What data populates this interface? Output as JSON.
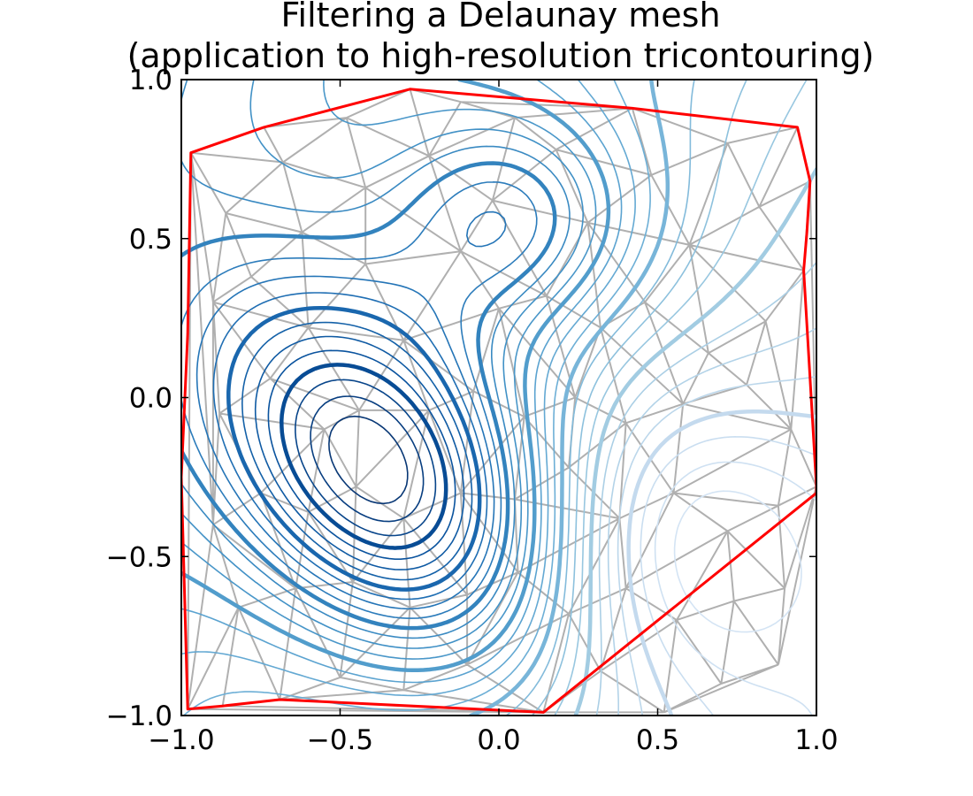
{
  "chart_data": {
    "type": "contour",
    "title": "Filtering a Delaunay mesh",
    "subtitle": "(application to high-resolution tricontouring)",
    "xlabel": "",
    "ylabel": "",
    "xlim": [
      -1.0,
      1.0
    ],
    "ylim": [
      -1.0,
      1.0
    ],
    "x_ticks": [
      -1.0,
      -0.5,
      0.0,
      0.5,
      1.0
    ],
    "y_ticks": [
      -1.0,
      -0.5,
      0.0,
      0.5,
      1.0
    ],
    "x_tick_labels": [
      "−1.0",
      "−0.5",
      "0.0",
      "0.5",
      "1.0"
    ],
    "y_tick_labels": [
      "−1.0",
      "−0.5",
      "0.0",
      "0.5",
      "1.0"
    ],
    "grid": false,
    "colormap": "Blues",
    "colors": {
      "mesh": "#b0b0b0",
      "masked_edges": "#ff0000",
      "contour_dark": "#08306b",
      "contour_light": "#deebf7"
    },
    "masked_boundary": [
      [
        -0.97,
        0.77
      ],
      [
        -0.74,
        0.85
      ],
      [
        -0.28,
        0.97
      ],
      [
        0.42,
        0.91
      ],
      [
        0.94,
        0.85
      ],
      [
        0.98,
        0.68
      ],
      [
        0.97,
        0.52
      ],
      [
        0.96,
        0.4
      ],
      [
        1.0,
        -0.28
      ],
      [
        1.0,
        -0.3
      ],
      [
        0.14,
        -0.99
      ],
      [
        -0.69,
        -0.95
      ],
      [
        -0.87,
        -0.97
      ],
      [
        -0.98,
        -0.98
      ],
      [
        -1.0,
        -0.25
      ],
      [
        -0.98,
        0.2
      ]
    ],
    "mesh_points": [
      [
        -0.97,
        0.77
      ],
      [
        -0.86,
        0.58
      ],
      [
        -0.74,
        0.85
      ],
      [
        -0.68,
        0.74
      ],
      [
        -0.62,
        0.52
      ],
      [
        -0.48,
        0.88
      ],
      [
        -0.42,
        0.66
      ],
      [
        -0.28,
        0.97
      ],
      [
        -0.22,
        0.76
      ],
      [
        -0.12,
        0.93
      ],
      [
        -0.02,
        0.62
      ],
      [
        0.05,
        0.88
      ],
      [
        0.18,
        0.78
      ],
      [
        0.28,
        0.55
      ],
      [
        0.42,
        0.91
      ],
      [
        0.48,
        0.7
      ],
      [
        0.6,
        0.48
      ],
      [
        0.72,
        0.8
      ],
      [
        0.82,
        0.6
      ],
      [
        0.94,
        0.85
      ],
      [
        0.98,
        0.68
      ],
      [
        -0.9,
        0.3
      ],
      [
        -0.78,
        0.38
      ],
      [
        -0.6,
        0.22
      ],
      [
        -0.42,
        0.42
      ],
      [
        -0.3,
        0.18
      ],
      [
        -0.12,
        0.46
      ],
      [
        0.0,
        0.28
      ],
      [
        0.15,
        0.32
      ],
      [
        0.32,
        0.22
      ],
      [
        0.46,
        0.3
      ],
      [
        0.66,
        0.14
      ],
      [
        0.84,
        0.24
      ],
      [
        0.96,
        0.4
      ],
      [
        -0.88,
        -0.05
      ],
      [
        -0.72,
        0.06
      ],
      [
        -0.55,
        -0.1
      ],
      [
        -0.44,
        -0.04
      ],
      [
        -0.22,
        -0.04
      ],
      [
        -0.08,
        0.02
      ],
      [
        0.08,
        -0.06
      ],
      [
        0.24,
        0.0
      ],
      [
        0.4,
        -0.08
      ],
      [
        0.58,
        -0.02
      ],
      [
        0.78,
        0.04
      ],
      [
        0.92,
        -0.1
      ],
      [
        1.0,
        -0.28
      ],
      [
        -0.9,
        -0.4
      ],
      [
        -0.75,
        -0.3
      ],
      [
        -0.6,
        -0.36
      ],
      [
        -0.45,
        -0.28
      ],
      [
        -0.3,
        -0.38
      ],
      [
        -0.12,
        -0.3
      ],
      [
        0.05,
        -0.32
      ],
      [
        0.22,
        -0.22
      ],
      [
        0.38,
        -0.38
      ],
      [
        0.55,
        -0.3
      ],
      [
        0.72,
        -0.42
      ],
      [
        0.88,
        -0.34
      ],
      [
        -0.82,
        -0.66
      ],
      [
        -0.64,
        -0.6
      ],
      [
        -0.46,
        -0.58
      ],
      [
        -0.28,
        -0.66
      ],
      [
        -0.1,
        -0.62
      ],
      [
        0.06,
        -0.55
      ],
      [
        0.22,
        -0.68
      ],
      [
        0.4,
        -0.6
      ],
      [
        0.56,
        -0.7
      ],
      [
        0.74,
        -0.64
      ],
      [
        0.9,
        -0.6
      ],
      [
        -0.87,
        -0.97
      ],
      [
        -0.69,
        -0.95
      ],
      [
        -0.5,
        -0.88
      ],
      [
        -0.3,
        -0.92
      ],
      [
        -0.1,
        -0.84
      ],
      [
        0.14,
        -0.99
      ],
      [
        0.32,
        -0.86
      ],
      [
        0.52,
        -0.99
      ],
      [
        0.7,
        -0.9
      ],
      [
        0.88,
        -0.84
      ],
      [
        -0.98,
        -0.98
      ]
    ],
    "series": [
      {
        "peak_x": -0.35,
        "peak_y": -0.25,
        "peak_height": 1.0,
        "spread_x": 0.32,
        "spread_y": 0.48,
        "tilt": 0.7
      },
      {
        "peak_x": 0.05,
        "peak_y": 0.55,
        "peak_height": 0.45,
        "spread_x": 0.28,
        "spread_y": 0.25,
        "tilt": 0.0
      },
      {
        "peak_x": 0.55,
        "peak_y": -0.45,
        "peak_height": -0.35,
        "spread_x": 0.35,
        "spread_y": 0.35,
        "tilt": 0.0
      }
    ],
    "contour_levels": 32,
    "bold_every": 4
  }
}
